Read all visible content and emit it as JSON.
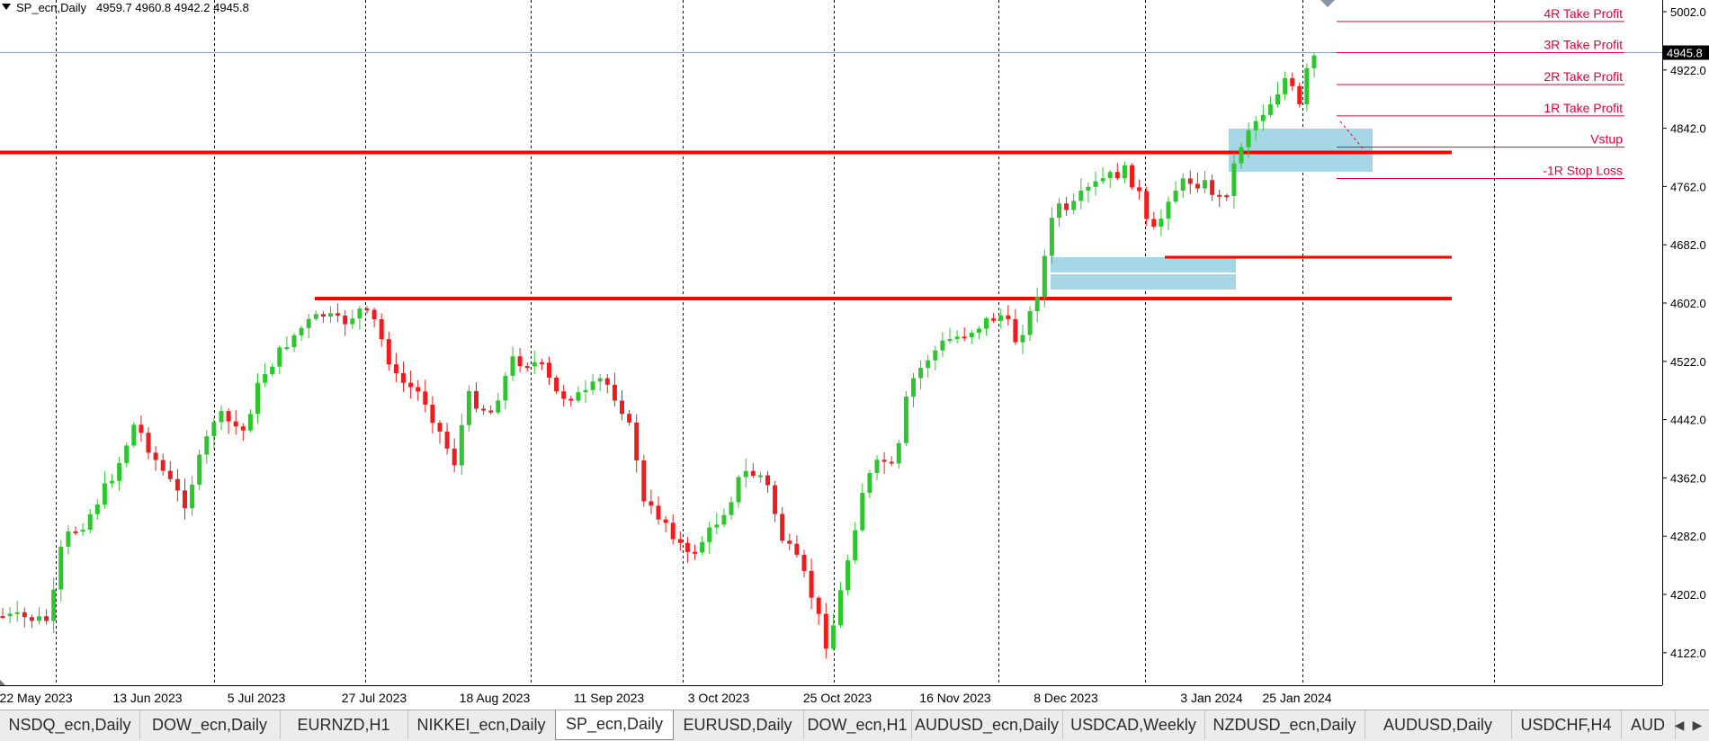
{
  "header": {
    "menu_glyph": "▼",
    "symbol": "SP_ecn,Daily",
    "ohlc": "4959.7 4960.8 4942.2 4945.8"
  },
  "price_axis": {
    "ticks": [
      "5002.0",
      "4922.0",
      "4842.0",
      "4762.0",
      "4682.0",
      "4602.0",
      "4522.0",
      "4442.0",
      "4362.0",
      "4282.0",
      "4202.0",
      "4122.0"
    ],
    "current_price": "4945.8"
  },
  "time_axis": {
    "labels": [
      "22 May 2023",
      "13 Jun 2023",
      "5 Jul 2023",
      "27 Jul 2023",
      "18 Aug 2023",
      "11 Sep 2023",
      "3 Oct 2023",
      "25 Oct 2023",
      "16 Nov 2023",
      "8 Dec 2023",
      "3 Jan 2024",
      "25 Jan 2024"
    ]
  },
  "trade_levels": [
    {
      "label": "4R Take Profit",
      "price": 4988.5
    },
    {
      "label": "3R Take Profit",
      "price": 4945.8
    },
    {
      "label": "2R Take Profit",
      "price": 4902.0
    },
    {
      "label": "1R Take Profit",
      "price": 4859.0
    },
    {
      "label": "Vstup",
      "price": 4816.0
    },
    {
      "label": "-1R Stop Loss",
      "price": 4773.0
    }
  ],
  "colors": {
    "bull": "#2ec62e",
    "bear": "#ee1c1c",
    "level_line": "#ff0000",
    "zone_fill": "#a7d7e6",
    "text": "#000000",
    "trade_text": "#e0003a",
    "grid": "#000000",
    "current_line": "#8aa2c8"
  },
  "tabs": [
    {
      "label": "NSDQ_ecn,Daily",
      "active": false
    },
    {
      "label": "DOW_ecn,Daily",
      "active": false
    },
    {
      "label": "EURNZD,H1",
      "active": false
    },
    {
      "label": "NIKKEI_ecn,Daily",
      "active": false
    },
    {
      "label": "SP_ecn,Daily",
      "active": true
    },
    {
      "label": "EURUSD,Daily",
      "active": false
    },
    {
      "label": "DOW_ecn,H1",
      "active": false
    },
    {
      "label": "AUDUSD_ecn,Daily",
      "active": false
    },
    {
      "label": "USDCAD,Weekly",
      "active": false
    },
    {
      "label": "NZDUSD_ecn,Daily",
      "active": false
    },
    {
      "label": "AUDUSD,Daily",
      "active": false
    },
    {
      "label": "USDCHF,H4",
      "active": false
    },
    {
      "label": "AUD",
      "active": false
    }
  ],
  "tab_nav": {
    "prev": "◀",
    "next": "▶"
  }
}
